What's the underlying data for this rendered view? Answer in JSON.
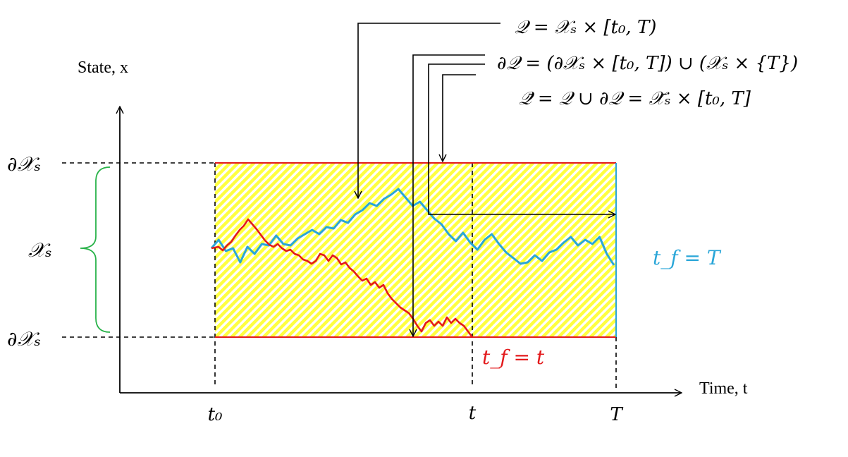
{
  "axes": {
    "y_label": "State, x",
    "x_label": "Time, t"
  },
  "state_labels": {
    "boundary_top": "∂𝒳ₛ",
    "boundary_bottom": "∂𝒳ₛ",
    "domain": "𝒳ₛ"
  },
  "time_labels": {
    "t0": "t₀",
    "t": "t",
    "T": "T"
  },
  "annotations": {
    "Q": "𝒬 = 𝒳ₛ × [t₀, T)",
    "dQ": "∂𝒬 = (∂𝒳ₛ × [t₀, T]) ∪ (𝒳ₛ × {T})",
    "Qbar": "𝒬̄ = 𝒬 ∪ ∂𝒬 = 𝒳̄ₛ × [t₀, T]"
  },
  "exit_labels": {
    "red": "t_f = t",
    "blue": "t_f = T"
  },
  "colors": {
    "hatch": "#ffff33",
    "hatch_line": "#e0e000",
    "boundary": "#e31a1c",
    "blue_path": "#2aa6d8",
    "red_path": "#e31a1c",
    "brace": "#2ab34a",
    "axis": "#000000"
  },
  "paths": {
    "blue": [
      0.0,
      0.06,
      -0.02,
      0.0,
      -0.1,
      0.01,
      -0.04,
      0.03,
      0.02,
      0.09,
      0.03,
      0.02,
      0.07,
      0.1,
      0.13,
      0.1,
      0.15,
      0.14,
      0.2,
      0.18,
      0.24,
      0.27,
      0.32,
      0.3,
      0.35,
      0.38,
      0.42,
      0.36,
      0.3,
      0.33,
      0.27,
      0.21,
      0.17,
      0.1,
      0.05,
      0.11,
      0.04,
      -0.01,
      0.06,
      0.1,
      0.03,
      -0.03,
      -0.07,
      -0.11,
      -0.1,
      -0.05,
      -0.09,
      -0.03,
      -0.01,
      0.04,
      0.08,
      0.02,
      0.06,
      0.03,
      0.08,
      -0.04,
      -0.12
    ]
  }
}
